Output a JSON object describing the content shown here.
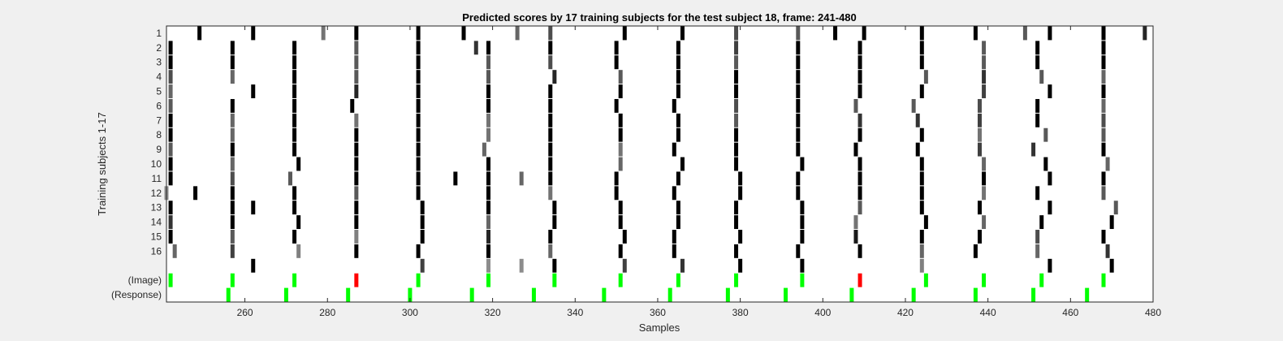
{
  "chart_data": {
    "type": "heatmap",
    "title": "Predicted scores by 17 training subjects for the test subject 18, frame: 241-480",
    "xlabel": "Samples",
    "ylabel": "Training subjects 1-17",
    "xlim": [
      241,
      480
    ],
    "xticks": [
      260,
      280,
      300,
      320,
      340,
      360,
      380,
      400,
      420,
      440,
      460,
      480
    ],
    "row_labels": [
      "1",
      "2",
      "3",
      "4",
      "5",
      "6",
      "7",
      "8",
      "9",
      "10",
      "11",
      "12",
      "13",
      "14",
      "15",
      "16",
      "",
      "(Image)",
      "(Response)"
    ],
    "grid": false,
    "colors": {
      "correct": "#00ff00",
      "wrong": "#ff0000",
      "score": "#000000"
    },
    "rows": [
      {
        "label": "1",
        "marks": [
          [
            262,
            0.0
          ],
          [
            303,
            0.25
          ],
          [
            319,
            0.55
          ],
          [
            327,
            0.55
          ],
          [
            335,
            0.0
          ],
          [
            352,
            0.25
          ],
          [
            366,
            0.2
          ],
          [
            380,
            0.0
          ],
          [
            395,
            0.0
          ],
          [
            424,
            0.5
          ],
          [
            455,
            0.0
          ],
          [
            470,
            0.0
          ]
        ]
      },
      {
        "label": "2",
        "marks": [
          [
            243,
            0.4
          ],
          [
            257,
            0.25
          ],
          [
            273,
            0.5
          ],
          [
            287,
            0.0
          ],
          [
            302,
            0.0
          ],
          [
            319,
            0.0
          ],
          [
            334,
            0.4
          ],
          [
            351,
            0.0
          ],
          [
            364,
            0.0
          ],
          [
            379,
            0.0
          ],
          [
            394,
            0.0
          ],
          [
            409,
            0.0
          ],
          [
            424,
            0.4
          ],
          [
            437,
            0.0
          ],
          [
            452,
            0.4
          ],
          [
            469,
            0.2
          ]
        ]
      },
      {
        "label": "3",
        "marks": [
          [
            242,
            0.0
          ],
          [
            257,
            0.35
          ],
          [
            272,
            0.0
          ],
          [
            287,
            0.5
          ],
          [
            303,
            0.0
          ],
          [
            319,
            0.15
          ],
          [
            334,
            0.0
          ],
          [
            352,
            0.0
          ],
          [
            364,
            0.0
          ],
          [
            380,
            0.0
          ],
          [
            395,
            0.0
          ],
          [
            408,
            0.1
          ],
          [
            424,
            0.0
          ],
          [
            438,
            0.0
          ],
          [
            452,
            0.3
          ],
          [
            468,
            0.0
          ]
        ]
      },
      {
        "label": "4",
        "marks": [
          [
            242,
            0.2
          ],
          [
            257,
            0.0
          ],
          [
            273,
            0.0
          ],
          [
            287,
            0.0
          ],
          [
            303,
            0.0
          ],
          [
            319,
            0.4
          ],
          [
            335,
            0.0
          ],
          [
            351,
            0.0
          ],
          [
            365,
            0.0
          ],
          [
            379,
            0.0
          ],
          [
            395,
            0.0
          ],
          [
            408,
            0.45
          ],
          [
            425,
            0.0
          ],
          [
            439,
            0.4
          ],
          [
            453,
            0.0
          ],
          [
            470,
            0.0
          ]
        ]
      },
      {
        "label": "5",
        "marks": [
          [
            242,
            0.0
          ],
          [
            257,
            0.0
          ],
          [
            262,
            0.0
          ],
          [
            272,
            0.0
          ],
          [
            287,
            0.0
          ],
          [
            303,
            0.0
          ],
          [
            319,
            0.0
          ],
          [
            335,
            0.0
          ],
          [
            351,
            0.0
          ],
          [
            365,
            0.0
          ],
          [
            379,
            0.0
          ],
          [
            395,
            0.0
          ],
          [
            409,
            0.35
          ],
          [
            424,
            0.0
          ],
          [
            438,
            0.0
          ],
          [
            455,
            0.0
          ],
          [
            471,
            0.35
          ]
        ]
      },
      {
        "label": "6",
        "marks": [
          [
            241,
            0.55
          ],
          [
            248,
            0.0
          ],
          [
            257,
            0.0
          ],
          [
            272,
            0.0
          ],
          [
            287,
            0.35
          ],
          [
            302,
            0.0
          ],
          [
            319,
            0.0
          ],
          [
            334,
            0.45
          ],
          [
            350,
            0.0
          ],
          [
            364,
            0.0
          ],
          [
            380,
            0.0
          ],
          [
            394,
            0.0
          ],
          [
            409,
            0.0
          ],
          [
            424,
            0.0
          ],
          [
            439,
            0.45
          ],
          [
            452,
            0.0
          ],
          [
            468,
            0.35
          ]
        ]
      },
      {
        "label": "7",
        "marks": [
          [
            242,
            0.0
          ],
          [
            257,
            0.3
          ],
          [
            271,
            0.35
          ],
          [
            287,
            0.0
          ],
          [
            302,
            0.0
          ],
          [
            311,
            0.0
          ],
          [
            319,
            0.0
          ],
          [
            327,
            0.4
          ],
          [
            334,
            0.0
          ],
          [
            350,
            0.0
          ],
          [
            365,
            0.0
          ],
          [
            380,
            0.0
          ],
          [
            394,
            0.0
          ],
          [
            409,
            0.0
          ],
          [
            424,
            0.0
          ],
          [
            439,
            0.0
          ],
          [
            455,
            0.0
          ],
          [
            468,
            0.0
          ]
        ]
      },
      {
        "label": "8",
        "marks": [
          [
            242,
            0.0
          ],
          [
            257,
            0.4
          ],
          [
            273,
            0.0
          ],
          [
            287,
            0.0
          ],
          [
            302,
            0.0
          ],
          [
            319,
            0.0
          ],
          [
            334,
            0.0
          ],
          [
            351,
            0.4
          ],
          [
            366,
            0.0
          ],
          [
            379,
            0.0
          ],
          [
            395,
            0.0
          ],
          [
            409,
            0.0
          ],
          [
            424,
            0.0
          ],
          [
            439,
            0.4
          ],
          [
            454,
            0.0
          ],
          [
            469,
            0.4
          ]
        ]
      },
      {
        "label": "9",
        "marks": [
          [
            242,
            0.35
          ],
          [
            257,
            0.0
          ],
          [
            272,
            0.0
          ],
          [
            287,
            0.0
          ],
          [
            302,
            0.0
          ],
          [
            318,
            0.4
          ],
          [
            334,
            0.0
          ],
          [
            351,
            0.45
          ],
          [
            364,
            0.0
          ],
          [
            379,
            0.0
          ],
          [
            394,
            0.0
          ],
          [
            408,
            0.0
          ],
          [
            423,
            0.0
          ],
          [
            438,
            0.25
          ],
          [
            451,
            0.2
          ],
          [
            468,
            0.0
          ]
        ]
      },
      {
        "label": "10",
        "marks": [
          [
            242,
            0.0
          ],
          [
            257,
            0.4
          ],
          [
            272,
            0.0
          ],
          [
            287,
            0.0
          ],
          [
            302,
            0.0
          ],
          [
            319,
            0.45
          ],
          [
            334,
            0.0
          ],
          [
            351,
            0.0
          ],
          [
            365,
            0.0
          ],
          [
            379,
            0.0
          ],
          [
            394,
            0.0
          ],
          [
            409,
            0.0
          ],
          [
            424,
            0.0
          ],
          [
            438,
            0.45
          ],
          [
            454,
            0.35
          ],
          [
            468,
            0.35
          ]
        ]
      },
      {
        "label": "11",
        "marks": [
          [
            242,
            0.0
          ],
          [
            257,
            0.4
          ],
          [
            272,
            0.0
          ],
          [
            287,
            0.45
          ],
          [
            302,
            0.0
          ],
          [
            319,
            0.45
          ],
          [
            334,
            0.0
          ],
          [
            351,
            0.0
          ],
          [
            365,
            0.0
          ],
          [
            379,
            0.35
          ],
          [
            394,
            0.0
          ],
          [
            409,
            0.2
          ],
          [
            423,
            0.2
          ],
          [
            438,
            0.25
          ],
          [
            452,
            0.0
          ],
          [
            468,
            0.3
          ]
        ]
      },
      {
        "label": "12",
        "marks": [
          [
            242,
            0.35
          ],
          [
            257,
            0.0
          ],
          [
            272,
            0.0
          ],
          [
            286,
            0.0
          ],
          [
            302,
            0.0
          ],
          [
            319,
            0.0
          ],
          [
            334,
            0.0
          ],
          [
            350,
            0.0
          ],
          [
            364,
            0.0
          ],
          [
            379,
            0.3
          ],
          [
            394,
            0.0
          ],
          [
            408,
            0.35
          ],
          [
            422,
            0.35
          ],
          [
            438,
            0.3
          ],
          [
            452,
            0.0
          ],
          [
            468,
            0.4
          ]
        ]
      },
      {
        "label": "13",
        "marks": [
          [
            242,
            0.4
          ],
          [
            262,
            0.0
          ],
          [
            272,
            0.0
          ],
          [
            287,
            0.15
          ],
          [
            302,
            0.0
          ],
          [
            319,
            0.0
          ],
          [
            334,
            0.0
          ],
          [
            351,
            0.0
          ],
          [
            365,
            0.0
          ],
          [
            379,
            0.0
          ],
          [
            394,
            0.0
          ],
          [
            409,
            0.0
          ],
          [
            424,
            0.0
          ],
          [
            439,
            0.25
          ],
          [
            455,
            0.0
          ],
          [
            468,
            0.0
          ]
        ]
      },
      {
        "label": "14",
        "marks": [
          [
            242,
            0.3
          ],
          [
            257,
            0.4
          ],
          [
            272,
            0.0
          ],
          [
            287,
            0.35
          ],
          [
            302,
            0.0
          ],
          [
            319,
            0.35
          ],
          [
            335,
            0.15
          ],
          [
            351,
            0.35
          ],
          [
            365,
            0.0
          ],
          [
            379,
            0.0
          ],
          [
            394,
            0.0
          ],
          [
            409,
            0.0
          ],
          [
            425,
            0.35
          ],
          [
            439,
            0.2
          ],
          [
            453,
            0.35
          ],
          [
            468,
            0.4
          ]
        ]
      },
      {
        "label": "15",
        "marks": [
          [
            242,
            0.0
          ],
          [
            257,
            0.0
          ],
          [
            272,
            0.0
          ],
          [
            287,
            0.35
          ],
          [
            302,
            0.0
          ],
          [
            319,
            0.35
          ],
          [
            334,
            0.3
          ],
          [
            350,
            0.0
          ],
          [
            365,
            0.0
          ],
          [
            379,
            0.35
          ],
          [
            394,
            0.0
          ],
          [
            409,
            0.0
          ],
          [
            424,
            0.0
          ],
          [
            439,
            0.35
          ],
          [
            452,
            0.0
          ],
          [
            468,
            0.0
          ]
        ]
      },
      {
        "label": "16",
        "marks": [
          [
            242,
            0.0
          ],
          [
            257,
            0.0
          ],
          [
            272,
            0.0
          ],
          [
            287,
            0.35
          ],
          [
            302,
            0.0
          ],
          [
            316,
            0.2
          ],
          [
            319,
            0.0
          ],
          [
            334,
            0.0
          ],
          [
            350,
            0.0
          ],
          [
            365,
            0.0
          ],
          [
            379,
            0.25
          ],
          [
            394,
            0.0
          ],
          [
            409,
            0.0
          ],
          [
            424,
            0.0
          ],
          [
            439,
            0.35
          ],
          [
            452,
            0.0
          ],
          [
            468,
            0.0
          ]
        ]
      },
      {
        "label": "",
        "marks": [
          [
            249,
            0.0
          ],
          [
            262,
            0.0
          ],
          [
            279,
            0.45
          ],
          [
            287,
            0.0
          ],
          [
            302,
            0.0
          ],
          [
            313,
            0.0
          ],
          [
            326,
            0.4
          ],
          [
            334,
            0.3
          ],
          [
            352,
            0.0
          ],
          [
            366,
            0.0
          ],
          [
            379,
            0.3
          ],
          [
            394,
            0.35
          ],
          [
            403,
            0.0
          ],
          [
            410,
            0.0
          ],
          [
            424,
            0.0
          ],
          [
            437,
            0.0
          ],
          [
            449,
            0.35
          ],
          [
            455,
            0.0
          ],
          [
            468,
            0.0
          ],
          [
            478,
            0.15
          ]
        ]
      }
    ],
    "image_row": {
      "label": "(Image)",
      "marks": [
        [
          242,
          "correct"
        ],
        [
          257,
          "correct"
        ],
        [
          272,
          "correct"
        ],
        [
          287,
          "wrong"
        ],
        [
          302,
          "correct"
        ],
        [
          319,
          "correct"
        ],
        [
          335,
          "correct"
        ],
        [
          351,
          "correct"
        ],
        [
          365,
          "correct"
        ],
        [
          379,
          "correct"
        ],
        [
          395,
          "correct"
        ],
        [
          409,
          "wrong"
        ],
        [
          425,
          "correct"
        ],
        [
          439,
          "correct"
        ],
        [
          453,
          "correct"
        ],
        [
          468,
          "correct"
        ]
      ]
    },
    "response_row": {
      "label": "(Response)",
      "marks": [
        [
          256,
          "correct"
        ],
        [
          270,
          "correct"
        ],
        [
          285,
          "correct"
        ],
        [
          300,
          "correct"
        ],
        [
          315,
          "correct"
        ],
        [
          330,
          "correct"
        ],
        [
          347,
          "correct"
        ],
        [
          363,
          "correct"
        ],
        [
          377,
          "correct"
        ],
        [
          391,
          "correct"
        ],
        [
          407,
          "correct"
        ],
        [
          422,
          "correct"
        ],
        [
          437,
          "correct"
        ],
        [
          451,
          "correct"
        ],
        [
          464,
          "correct"
        ]
      ]
    }
  }
}
